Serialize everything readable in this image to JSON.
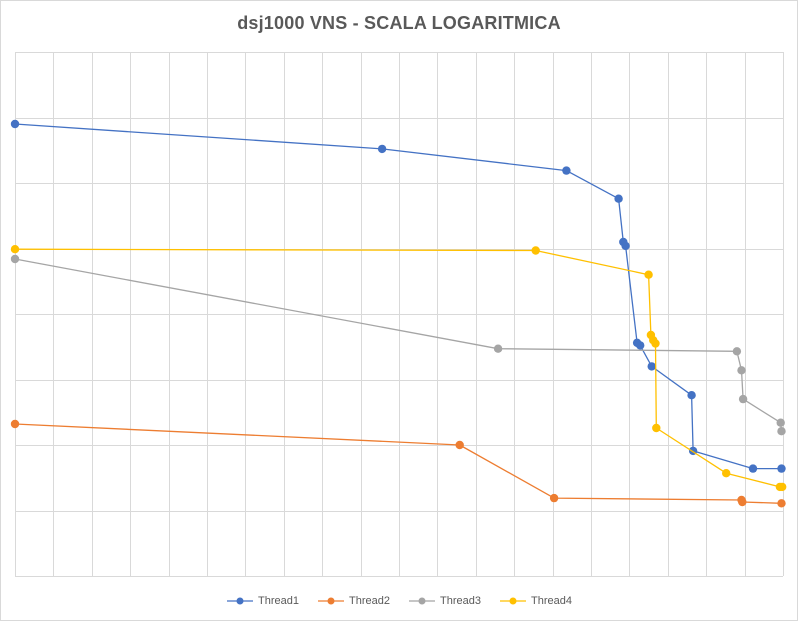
{
  "chart_data": {
    "type": "line",
    "title": "dsj1000 VNS - SCALA LOGARITMICA",
    "xlabel": "",
    "ylabel": "",
    "y_scale": "log",
    "grid": true,
    "legend_position": "bottom",
    "xlim": [
      0,
      100
    ],
    "ylim": [
      0,
      8.0
    ],
    "series": [
      {
        "name": "Thread1",
        "color": "#4472C4",
        "x": [
          0,
          47.8,
          71.8,
          78.6,
          79.2,
          79.5,
          81.0,
          81.4,
          82.9,
          88.1,
          88.3,
          96.1,
          99.8
        ],
        "y": [
          6.9,
          6.52,
          6.19,
          5.76,
          5.1,
          5.04,
          3.56,
          3.52,
          3.2,
          2.76,
          1.91,
          1.64,
          1.64
        ]
      },
      {
        "name": "Thread2",
        "color": "#ED7D31",
        "x": [
          0,
          57.9,
          70.2,
          94.6,
          94.7,
          99.8
        ],
        "y": [
          2.32,
          2.0,
          1.19,
          1.16,
          1.13,
          1.11
        ]
      },
      {
        "name": "Thread3",
        "color": "#A5A5A5",
        "x": [
          0,
          62.9,
          94.0,
          94.6,
          94.8,
          99.7,
          99.8
        ],
        "y": [
          4.84,
          3.47,
          3.43,
          3.14,
          2.7,
          2.34,
          2.21
        ]
      },
      {
        "name": "Thread4",
        "color": "#FFC000",
        "x": [
          0,
          67.8,
          82.5,
          82.8,
          83.1,
          83.4,
          83.5,
          92.6,
          99.6,
          99.9
        ],
        "y": [
          4.99,
          4.97,
          4.6,
          3.68,
          3.6,
          3.55,
          2.26,
          1.57,
          1.36,
          1.36
        ]
      }
    ]
  }
}
